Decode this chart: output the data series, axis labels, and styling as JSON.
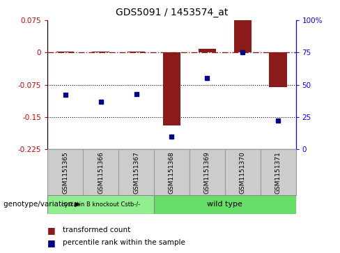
{
  "title": "GDS5091 / 1453574_at",
  "samples": [
    "GSM1151365",
    "GSM1151366",
    "GSM1151367",
    "GSM1151368",
    "GSM1151369",
    "GSM1151370",
    "GSM1151371"
  ],
  "transformed_count": [
    0.002,
    0.002,
    0.002,
    -0.17,
    0.008,
    0.075,
    -0.08
  ],
  "percentile_rank": [
    42,
    37,
    43,
    10,
    55,
    75,
    22
  ],
  "ylim_left": [
    -0.225,
    0.075
  ],
  "ylim_right": [
    0,
    100
  ],
  "yticks_left": [
    0.075,
    0,
    -0.075,
    -0.15,
    -0.225
  ],
  "yticks_right": [
    100,
    75,
    50,
    25,
    0
  ],
  "ytick_labels_left": [
    "0.075",
    "0",
    "-0.075",
    "-0.15",
    "-0.225"
  ],
  "ytick_labels_right": [
    "100%",
    "75",
    "50",
    "25",
    "0"
  ],
  "dotted_lines": [
    -0.075,
    -0.15
  ],
  "group1_label": "cystatin B knockout Cstb-/-",
  "group2_label": "wild type",
  "group1_indices": [
    0,
    1,
    2
  ],
  "group2_indices": [
    3,
    4,
    5,
    6
  ],
  "group1_color": "#90EE90",
  "group2_color": "#66DD66",
  "bar_color": "#8B1A1A",
  "dot_color": "#00008B",
  "legend_bar_label": "transformed count",
  "legend_dot_label": "percentile rank within the sample",
  "xlabel_annotation": "genotype/variation",
  "sample_box_color": "#cccccc",
  "sample_box_edge": "#999999"
}
